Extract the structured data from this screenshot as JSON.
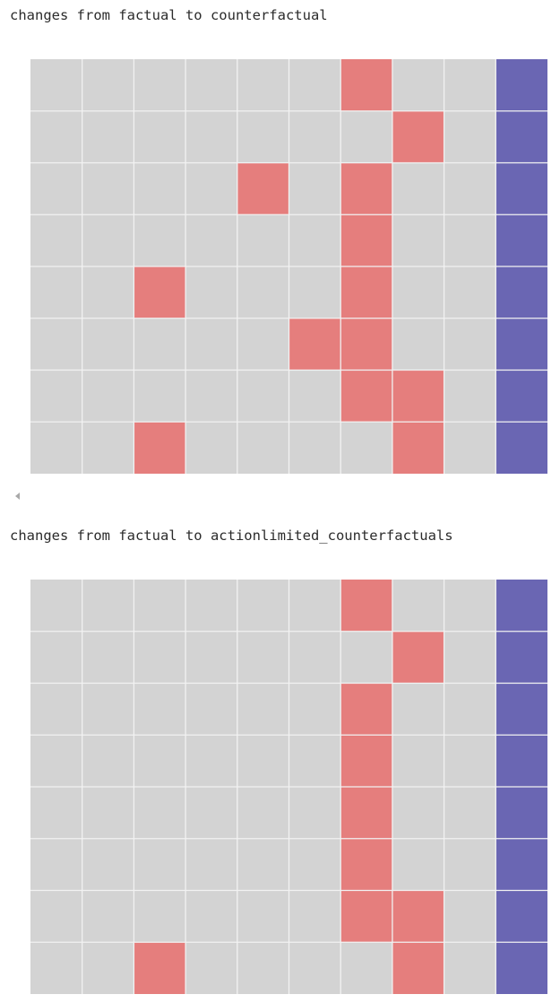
{
  "outputs": [
    {
      "caption": "changes from factual to counterfactual"
    },
    {
      "caption": "changes from factual to actionlimited_counterfactuals"
    }
  ],
  "colors": {
    "unchanged": "#d3d3d3",
    "changed": "#e57e7d",
    "target": "#6a66b3",
    "grid_line": "#f2f2f2"
  },
  "chart_data": [
    {
      "type": "heatmap",
      "title": "",
      "xlabel": "",
      "ylabel": "",
      "grid": true,
      "legend": "none",
      "n_rows": 8,
      "n_cols": 10,
      "legend_values": {
        "0": "unchanged",
        "1": "changed",
        "2": "target"
      },
      "values": [
        [
          0,
          0,
          0,
          0,
          0,
          0,
          1,
          0,
          0,
          2
        ],
        [
          0,
          0,
          0,
          0,
          0,
          0,
          0,
          1,
          0,
          2
        ],
        [
          0,
          0,
          0,
          0,
          1,
          0,
          1,
          0,
          0,
          2
        ],
        [
          0,
          0,
          0,
          0,
          0,
          0,
          1,
          0,
          0,
          2
        ],
        [
          0,
          0,
          1,
          0,
          0,
          0,
          1,
          0,
          0,
          2
        ],
        [
          0,
          0,
          0,
          0,
          0,
          1,
          1,
          0,
          0,
          2
        ],
        [
          0,
          0,
          0,
          0,
          0,
          0,
          1,
          1,
          0,
          2
        ],
        [
          0,
          0,
          1,
          0,
          0,
          0,
          0,
          1,
          0,
          2
        ]
      ]
    },
    {
      "type": "heatmap",
      "title": "",
      "xlabel": "",
      "ylabel": "",
      "grid": true,
      "legend": "none",
      "n_rows": 8,
      "n_cols": 10,
      "legend_values": {
        "0": "unchanged",
        "1": "changed",
        "2": "target"
      },
      "values": [
        [
          0,
          0,
          0,
          0,
          0,
          0,
          1,
          0,
          0,
          2
        ],
        [
          0,
          0,
          0,
          0,
          0,
          0,
          0,
          1,
          0,
          2
        ],
        [
          0,
          0,
          0,
          0,
          0,
          0,
          1,
          0,
          0,
          2
        ],
        [
          0,
          0,
          0,
          0,
          0,
          0,
          1,
          0,
          0,
          2
        ],
        [
          0,
          0,
          0,
          0,
          0,
          0,
          1,
          0,
          0,
          2
        ],
        [
          0,
          0,
          0,
          0,
          0,
          0,
          1,
          0,
          0,
          2
        ],
        [
          0,
          0,
          0,
          0,
          0,
          0,
          1,
          1,
          0,
          2
        ],
        [
          0,
          0,
          1,
          0,
          0,
          0,
          0,
          1,
          0,
          2
        ]
      ]
    }
  ]
}
